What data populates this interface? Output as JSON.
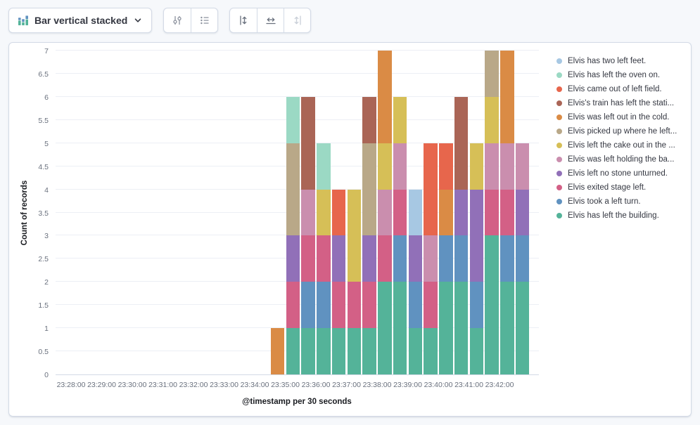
{
  "toolbar": {
    "chart_type_label": "Bar vertical stacked"
  },
  "chart_data": {
    "type": "bar",
    "mode": "vertical-stacked",
    "ylabel": "Count of records",
    "xlabel": "@timestamp per 30 seconds",
    "ylim": [
      0,
      7
    ],
    "grid": true,
    "legend_position": "right",
    "seconds_per_bucket": 30,
    "y_ticks": [
      "0",
      "0.5",
      "1",
      "1.5",
      "2",
      "2.5",
      "3",
      "3.5",
      "4",
      "4.5",
      "5",
      "5.5",
      "6",
      "6.5",
      "7"
    ],
    "x_ticks": [
      "23:28:00",
      "23:29:00",
      "23:30:00",
      "23:31:00",
      "23:32:00",
      "23:33:00",
      "23:34:00",
      "23:35:00",
      "23:36:00",
      "23:37:00",
      "23:38:00",
      "23:39:00",
      "23:40:00",
      "23:41:00",
      "23:42:00"
    ],
    "categories": [
      "23:34:30",
      "23:35:00",
      "23:35:30",
      "23:36:00",
      "23:36:30",
      "23:37:00",
      "23:37:30",
      "23:38:00",
      "23:38:30",
      "23:39:00",
      "23:39:30",
      "23:40:00",
      "23:40:30",
      "23:41:00",
      "23:41:30",
      "23:42:00",
      "23:42:30"
    ],
    "series": [
      {
        "name": "Elvis has left the building.",
        "color": "#54B399",
        "values": [
          0,
          1,
          1,
          1,
          1,
          1,
          1,
          2,
          2,
          1,
          1,
          2,
          2,
          1,
          3,
          2,
          2
        ]
      },
      {
        "name": "Elvis took a left turn.",
        "color": "#6092C0",
        "values": [
          0,
          0,
          1,
          1,
          0,
          0,
          0,
          0,
          1,
          1,
          0,
          1,
          1,
          1,
          0,
          1,
          1
        ]
      },
      {
        "name": "Elvis exited stage left.",
        "color": "#D36086",
        "values": [
          0,
          1,
          1,
          1,
          1,
          1,
          1,
          1,
          1,
          0,
          1,
          0,
          0,
          0,
          1,
          1,
          0
        ]
      },
      {
        "name": "Elvis left no stone unturned.",
        "color": "#9170B8",
        "values": [
          0,
          1,
          0,
          0,
          1,
          0,
          1,
          0,
          0,
          1,
          0,
          0,
          1,
          2,
          0,
          0,
          1
        ]
      },
      {
        "name": "Elvis was left holding the ba...",
        "color": "#CA8EAE",
        "values": [
          0,
          0,
          1,
          0,
          0,
          0,
          0,
          1,
          1,
          0,
          1,
          0,
          0,
          0,
          1,
          1,
          1
        ]
      },
      {
        "name": "Elvis left the cake out in the ...",
        "color": "#D6BF57",
        "values": [
          0,
          0,
          0,
          1,
          0,
          2,
          0,
          1,
          1,
          0,
          0,
          0,
          0,
          1,
          1,
          0,
          0
        ]
      },
      {
        "name": "Elvis picked up where he left...",
        "color": "#B9A888",
        "values": [
          0,
          2,
          0,
          0,
          0,
          0,
          2,
          0,
          0,
          0,
          0,
          0,
          0,
          0,
          1,
          0,
          0
        ]
      },
      {
        "name": "Elvis was left out in the cold.",
        "color": "#DA8B45",
        "values": [
          1,
          0,
          0,
          0,
          0,
          0,
          0,
          2,
          0,
          0,
          0,
          1,
          0,
          0,
          0,
          2,
          0
        ]
      },
      {
        "name": "Elvis's train has left the stati...",
        "color": "#AA6556",
        "values": [
          0,
          0,
          2,
          0,
          0,
          0,
          1,
          0,
          0,
          0,
          0,
          0,
          2,
          0,
          0,
          0,
          0
        ]
      },
      {
        "name": "Elvis came out of left field.",
        "color": "#E7664C",
        "values": [
          0,
          0,
          0,
          0,
          1,
          0,
          0,
          0,
          0,
          0,
          2,
          1,
          0,
          0,
          0,
          0,
          0
        ]
      },
      {
        "name": "Elvis has left the oven on.",
        "color": "#9BD9C4",
        "values": [
          0,
          1,
          0,
          1,
          0,
          0,
          0,
          0,
          0,
          0,
          0,
          0,
          0,
          0,
          0,
          0,
          0
        ]
      },
      {
        "name": "Elvis has two left feet.",
        "color": "#A7C8E3",
        "values": [
          0,
          0,
          0,
          0,
          0,
          0,
          0,
          0,
          0,
          1,
          0,
          0,
          0,
          0,
          0,
          0,
          0
        ]
      }
    ]
  }
}
